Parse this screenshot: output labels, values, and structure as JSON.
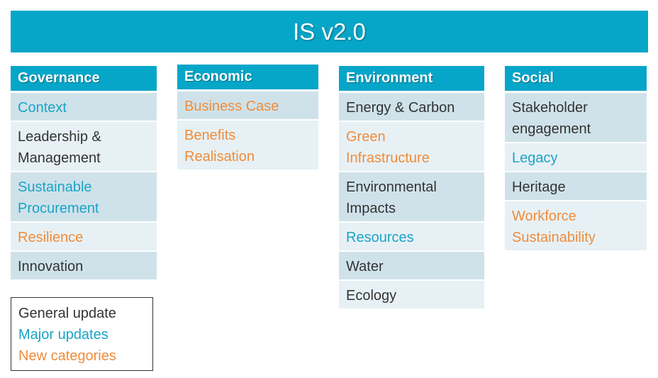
{
  "title": "IS v2.0",
  "colors": {
    "banner": "#06a6c9",
    "general_update": "#333333",
    "major_update": "#1ba3c6",
    "new_category": "#f08c3b"
  },
  "columns": [
    {
      "header": "Governance",
      "items": [
        {
          "lines": [
            "Context"
          ],
          "status": "major"
        },
        {
          "lines": [
            "Leadership &",
            "Management"
          ],
          "status": "general"
        },
        {
          "lines": [
            "Sustainable",
            "Procurement"
          ],
          "status": "major"
        },
        {
          "lines": [
            "Resilience"
          ],
          "status": "new"
        },
        {
          "lines": [
            "Innovation"
          ],
          "status": "general"
        }
      ]
    },
    {
      "header": "Economic",
      "items": [
        {
          "lines": [
            "Business Case"
          ],
          "status": "new"
        },
        {
          "lines": [
            "Benefits",
            "Realisation"
          ],
          "status": "new"
        }
      ]
    },
    {
      "header": "Environment",
      "items": [
        {
          "lines": [
            "Energy & Carbon"
          ],
          "status": "general"
        },
        {
          "lines": [
            "Green",
            "Infrastructure"
          ],
          "status": "new"
        },
        {
          "lines": [
            "Environmental",
            "Impacts"
          ],
          "status": "general"
        },
        {
          "lines": [
            "Resources"
          ],
          "status": "major"
        },
        {
          "lines": [
            "Water"
          ],
          "status": "general"
        },
        {
          "lines": [
            "Ecology"
          ],
          "status": "general"
        }
      ]
    },
    {
      "header": "Social",
      "items": [
        {
          "lines": [
            "Stakeholder",
            "engagement"
          ],
          "status": "general"
        },
        {
          "lines": [
            "Legacy"
          ],
          "status": "major"
        },
        {
          "lines": [
            "Heritage"
          ],
          "status": "general"
        },
        {
          "lines": [
            "Workforce",
            "Sustainability"
          ],
          "status": "new"
        }
      ]
    }
  ],
  "legend": {
    "general": "General update",
    "major": "Major updates",
    "new": "New categories"
  }
}
